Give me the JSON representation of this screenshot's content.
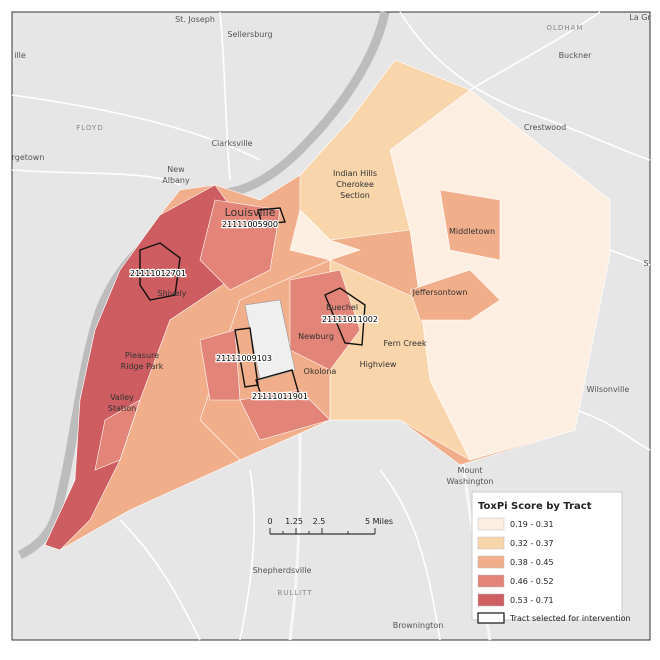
{
  "map": {
    "places": [
      "St. Joseph",
      "Sellersburg",
      "OLDHAM",
      "La Gr",
      "Buckner",
      "ille",
      "FLOYD",
      "rgetown",
      "Crestwood",
      "Clarksville",
      "New",
      "Albany",
      "Louisville",
      "Indian Hills",
      "Cherokee",
      "Section",
      "Middletown",
      "Jeffersontown",
      "Shively",
      "Buechel",
      "Fern Creek",
      "Newburg",
      "Okolona",
      "Highview",
      "Pleasure",
      "Ridge Park",
      "Valley",
      "Station",
      "Wilsonville",
      "Mount",
      "Washington",
      "Shepherdsville",
      "BULLITT",
      "Brownington",
      "S"
    ],
    "tracts": [
      "21111005900",
      "21111012701",
      "21111011002",
      "21111009103",
      "21111011901"
    ]
  },
  "legend": {
    "title": "ToxPi Score by Tract",
    "classes": [
      {
        "label": "0.19 - 0.31",
        "color": "#fcefe1"
      },
      {
        "label": "0.32 - 0.37",
        "color": "#f8d5ab"
      },
      {
        "label": "0.38 - 0.45",
        "color": "#f1ae8a"
      },
      {
        "label": "0.46 - 0.52",
        "color": "#e28477"
      },
      {
        "label": "0.53 - 0.71",
        "color": "#cd5d60"
      }
    ],
    "selected_label": "Tract selected for intervention"
  },
  "scale_bar": {
    "labels": [
      "0",
      "1.25",
      "2.5",
      "5 Miles"
    ]
  }
}
